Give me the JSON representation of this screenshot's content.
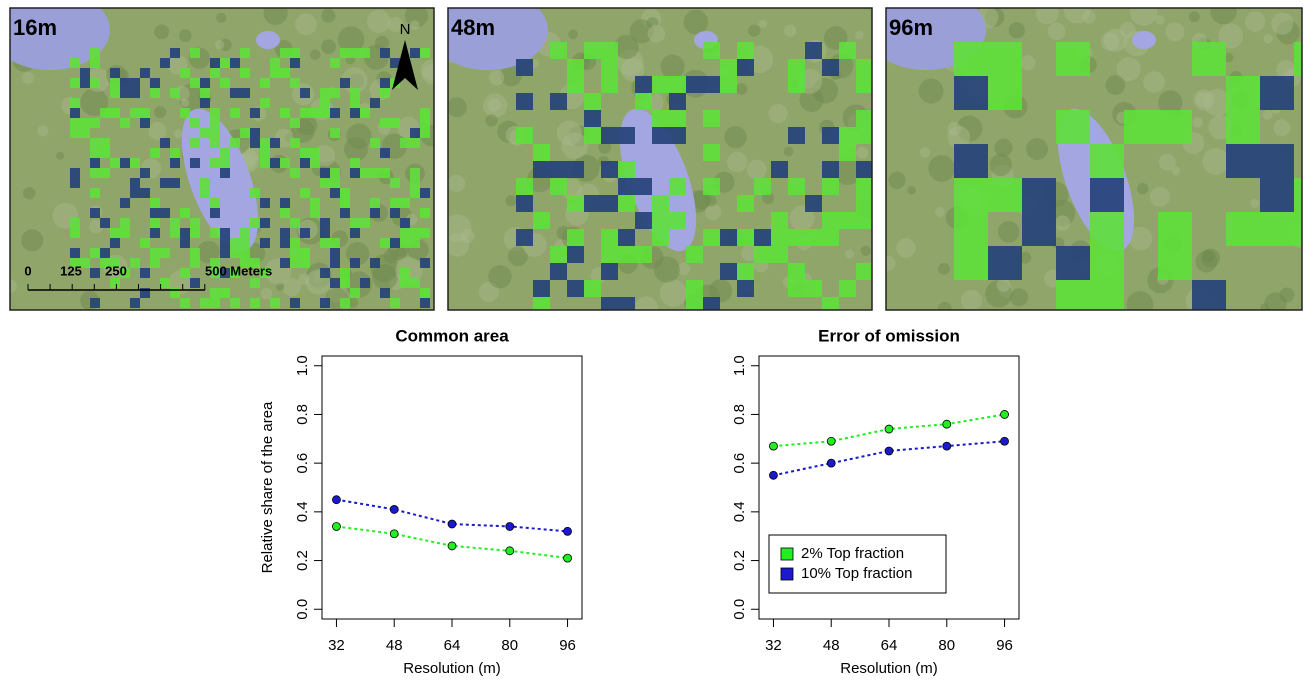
{
  "maps": {
    "panels": [
      {
        "label": "16m"
      },
      {
        "label": "48m"
      },
      {
        "label": "96m"
      }
    ],
    "north": "N",
    "scale_labels": [
      "0",
      "125",
      "250",
      "500 Meters"
    ]
  },
  "chart_data": [
    {
      "type": "line",
      "title": "Common area",
      "x_label": "Resolution (m)",
      "y_label": "Relative share of the area",
      "x": [
        32,
        48,
        64,
        80,
        96
      ],
      "xlim": [
        28,
        100
      ],
      "xticks": [
        32,
        48,
        64,
        80,
        96
      ],
      "ylim": [
        -0.04,
        1.04
      ],
      "yticks": [
        {
          "value": 0,
          "label": "0.0"
        },
        0.2,
        0.4,
        0.6,
        0.8,
        {
          "value": 1,
          "label": "1.0"
        }
      ],
      "series": [
        {
          "color": "#22ee22",
          "values": [
            0.34,
            0.31,
            0.26,
            0.24,
            0.21
          ]
        },
        {
          "color": "#1a1acc",
          "values": [
            0.45,
            0.41,
            0.35,
            0.34,
            0.32
          ]
        }
      ]
    },
    {
      "type": "line",
      "title": "Error of omission",
      "x_label": "Resolution (m)",
      "x": [
        32,
        48,
        64,
        80,
        96
      ],
      "xlim": [
        28,
        100
      ],
      "xticks": [
        32,
        48,
        64,
        80,
        96
      ],
      "ylim": [
        -0.04,
        1.04
      ],
      "yticks": [
        {
          "value": 0,
          "label": "0.0"
        },
        0.2,
        0.4,
        0.6,
        0.8,
        {
          "value": 1,
          "label": "1.0"
        }
      ],
      "legend": "bottom-left",
      "series": [
        {
          "name": "2% Top fraction",
          "color": "#22ee22",
          "values": [
            0.67,
            0.69,
            0.74,
            0.76,
            0.8
          ]
        },
        {
          "name": "10% Top fraction",
          "color": "#1a1acc",
          "values": [
            0.55,
            0.6,
            0.65,
            0.67,
            0.69
          ]
        }
      ]
    }
  ]
}
